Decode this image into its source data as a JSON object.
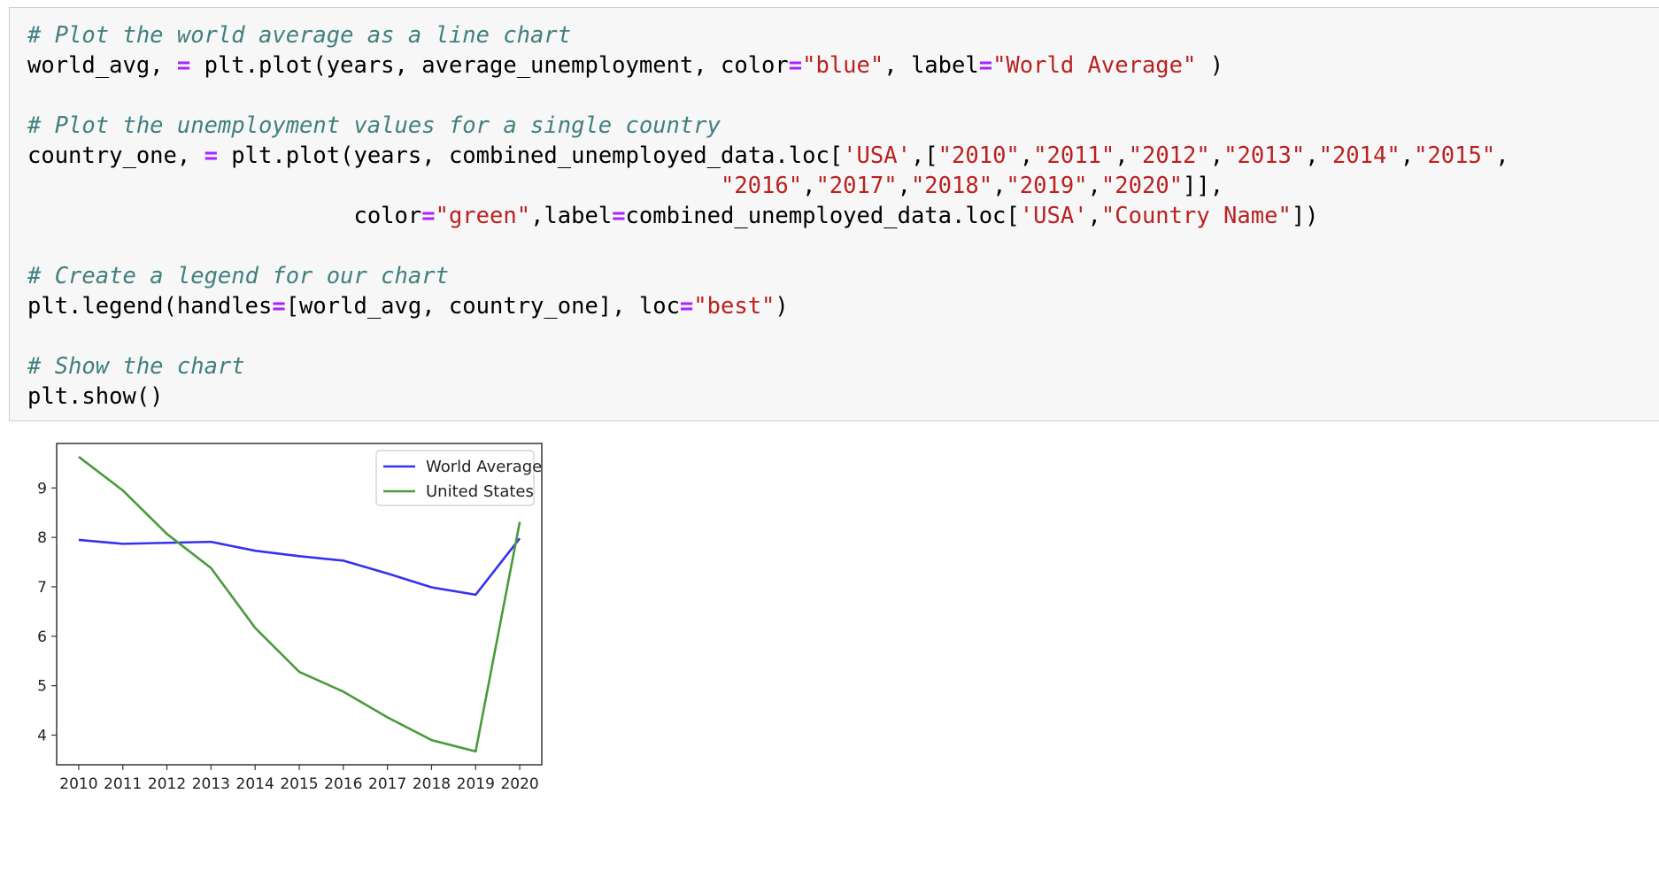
{
  "code": {
    "comment1": "# Plot the world average as a line chart",
    "code1": {
      "p1": "world_avg, ",
      "eq1": "=",
      "p2": " plt.plot(years, average_unemployment, color",
      "eq2": "=",
      "s1": "\"blue\"",
      "p3": ", label",
      "eq3": "=",
      "s2": "\"World Average\"",
      "p4": " )"
    },
    "comment2": "# Plot the unemployment values for a single country",
    "code2": {
      "p1": "country_one, ",
      "eq1": "=",
      "p2": " plt.plot(years, combined_unemployed_data.loc[",
      "s1": "'USA'",
      "p3": ",[",
      "s2010": "\"2010\"",
      "s2011": "\"2011\"",
      "s2012": "\"2012\"",
      "s2013": "\"2013\"",
      "s2014": "\"2014\"",
      "s2015": "\"2015\"",
      "comma": ",",
      "s2016": "\"2016\"",
      "s2017": "\"2017\"",
      "s2018": "\"2018\"",
      "s2019": "\"2019\"",
      "s2020": "\"2020\"",
      "close1": "]],",
      "p4": "color",
      "eq2": "=",
      "sgreen": "\"green\"",
      "p5": ",label",
      "eq3": "=",
      "p6": "combined_unemployed_data.loc[",
      "susa": "'USA'",
      "p7": ",",
      "sname": "\"Country Name\"",
      "p8": "])"
    },
    "comment3": "# Create a legend for our chart",
    "code3": {
      "p1": "plt.legend(handles",
      "eq1": "=",
      "p2": "[world_avg, country_one], loc",
      "eq2": "=",
      "s1": "\"best\"",
      "p3": ")"
    },
    "comment4": "# Show the chart",
    "code4": "plt.show()"
  },
  "chart_data": {
    "type": "line",
    "x": [
      2010,
      2011,
      2012,
      2013,
      2014,
      2015,
      2016,
      2017,
      2018,
      2019,
      2020
    ],
    "xticks": [
      "2010",
      "2011",
      "2012",
      "2013",
      "2014",
      "2015",
      "2016",
      "2017",
      "2018",
      "2019",
      "2020"
    ],
    "yticks": [
      "4",
      "5",
      "6",
      "7",
      "8",
      "9"
    ],
    "xlim": [
      2009.5,
      2020.5
    ],
    "ylim": [
      3.4,
      9.9
    ],
    "legend_position": "top-right",
    "grid": false,
    "series": [
      {
        "name": "World Average",
        "color": "#3333ee",
        "values": [
          7.95,
          7.87,
          7.89,
          7.91,
          7.73,
          7.62,
          7.53,
          7.27,
          6.99,
          6.84,
          7.98
        ]
      },
      {
        "name": "United States",
        "color": "#4a9a3c",
        "values": [
          9.63,
          8.95,
          8.07,
          7.38,
          6.17,
          5.28,
          4.88,
          4.36,
          3.9,
          3.67,
          8.31
        ]
      }
    ]
  }
}
